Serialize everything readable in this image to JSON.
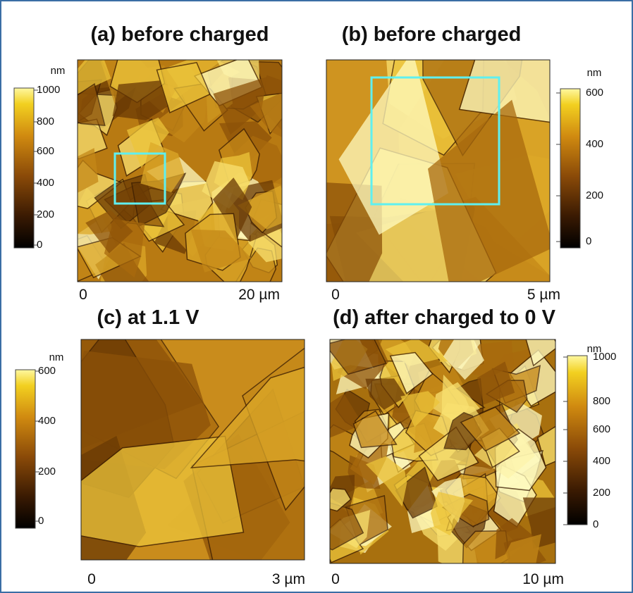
{
  "panels": [
    {
      "title": "(a) before charged",
      "unit": "nm",
      "colorbar_ticks": [
        1000,
        800,
        600,
        400,
        200,
        0
      ],
      "x_start": "0",
      "x_end": "20 µm"
    },
    {
      "title": "(b) before charged",
      "unit": "nm",
      "colorbar_ticks": [
        600,
        400,
        200,
        0
      ],
      "x_start": "0",
      "x_end": "5 µm"
    },
    {
      "title": "(c) at 1.1 V",
      "unit": "nm",
      "colorbar_ticks": [
        600,
        400,
        200,
        0
      ],
      "x_start": "0",
      "x_end": "3 µm"
    },
    {
      "title": "(d) after charged to 0 V",
      "unit": "nm",
      "colorbar_ticks": [
        1000,
        800,
        600,
        400,
        200,
        0
      ],
      "x_start": "0",
      "x_end": "10 µm"
    }
  ]
}
